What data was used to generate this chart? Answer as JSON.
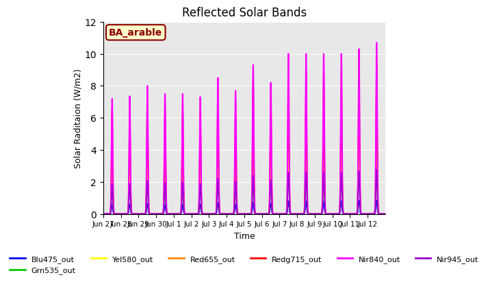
{
  "title": "Reflected Solar Bands",
  "xlabel": "Time",
  "ylabel": "Solar Raditaion (W/m2)",
  "annotation": "BA_arable",
  "ylim": [
    0,
    12
  ],
  "background_color": "#e8e8e8",
  "series": [
    {
      "name": "Blu475_out",
      "color": "#0000ff",
      "lw": 1.2
    },
    {
      "name": "Grn535_out",
      "color": "#00cc00",
      "lw": 1.2
    },
    {
      "name": "Yel580_out",
      "color": "#ffff00",
      "lw": 1.2
    },
    {
      "name": "Red655_out",
      "color": "#ff8800",
      "lw": 1.2
    },
    {
      "name": "Redg715_out",
      "color": "#ff0000",
      "lw": 1.2
    },
    {
      "name": "Nir840_out",
      "color": "#ff00ff",
      "lw": 1.5
    },
    {
      "name": "Nir945_out",
      "color": "#9900cc",
      "lw": 1.2
    }
  ],
  "xtick_labels": [
    "Jun 27",
    "Jun 28",
    "Jun 29",
    "Jun 30",
    "Jul 1",
    "Jul 2",
    "Jul 3",
    "Jul 4",
    "Jul 5",
    "Jul 6",
    "Jul 7",
    "Jul 8",
    "Jul 9",
    "Jul 10",
    "Jul 11",
    "Jul 12"
  ],
  "n_days": 16,
  "day_peaks": [
    7.2,
    7.35,
    8.0,
    7.5,
    7.5,
    7.3,
    8.5,
    7.7,
    9.3,
    8.2,
    10.0,
    10.0,
    10.0,
    10.0,
    10.3,
    10.7
  ],
  "scale_factors": {
    "Blu475_out": 0.08,
    "Grn535_out": 0.39,
    "Yel580_out": 0.38,
    "Red655_out": 0.6,
    "Redg715_out": 0.92,
    "Nir840_out": 1.0,
    "Nir945_out": 0.26
  }
}
